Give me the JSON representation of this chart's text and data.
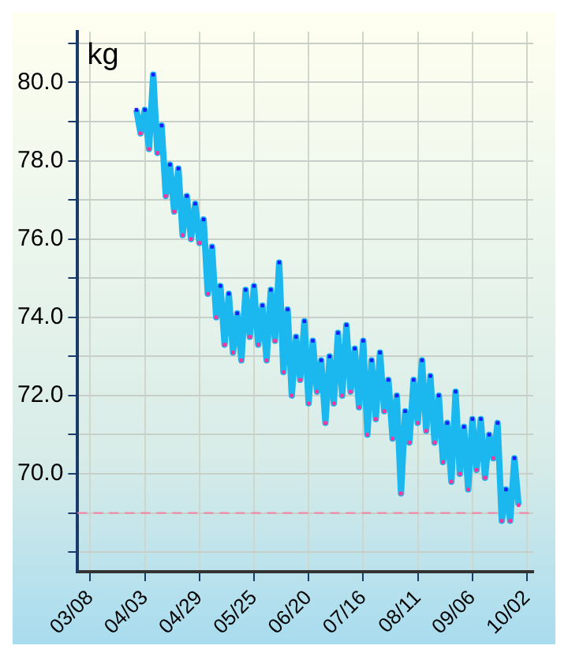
{
  "chart_data": {
    "type": "line",
    "ylabel": "kg",
    "x": [
      "--03-30",
      "--04-01",
      "--04-03",
      "--04-05",
      "--04-07",
      "--04-09",
      "--04-11",
      "--04-13",
      "--04-15",
      "--04-17",
      "--04-19",
      "--04-21",
      "--04-23",
      "--04-25",
      "--04-27",
      "--04-29",
      "--05-01",
      "--05-03",
      "--05-05",
      "--05-07",
      "--05-09",
      "--05-11",
      "--05-13",
      "--05-15",
      "--05-17",
      "--05-19",
      "--05-21",
      "--05-23",
      "--05-25",
      "--05-27",
      "--05-29",
      "--05-31",
      "--06-02",
      "--06-04",
      "--06-06",
      "--06-08",
      "--06-10",
      "--06-12",
      "--06-14",
      "--06-16",
      "--06-18",
      "--06-20",
      "--06-22",
      "--06-24",
      "--06-26",
      "--06-28",
      "--06-30",
      "--07-02",
      "--07-04",
      "--07-06",
      "--07-08",
      "--07-10",
      "--07-12",
      "--07-14",
      "--07-16",
      "--07-18",
      "--07-20",
      "--07-22",
      "--07-24",
      "--07-26",
      "--07-28",
      "--07-30",
      "--08-01",
      "--08-03",
      "--08-05",
      "--08-07",
      "--08-09",
      "--08-11",
      "--08-13",
      "--08-15",
      "--08-17",
      "--08-19",
      "--08-21",
      "--08-23",
      "--08-25",
      "--08-27",
      "--08-29",
      "--08-31",
      "--09-02",
      "--09-04",
      "--09-06",
      "--09-08",
      "--09-10",
      "--09-12",
      "--09-14",
      "--09-16",
      "--09-18",
      "--09-20",
      "--09-22",
      "--09-24",
      "--09-26",
      "--09-28"
    ],
    "series": [
      {
        "color": "#1ab8ee",
        "values": [
          79.3,
          78.7,
          79.3,
          78.3,
          80.2,
          78.2,
          78.9,
          77.1,
          77.9,
          76.7,
          77.8,
          76.1,
          77.1,
          76.0,
          76.9,
          75.9,
          76.5,
          74.6,
          75.8,
          74.0,
          74.8,
          73.3,
          74.6,
          73.1,
          74.1,
          72.9,
          74.7,
          73.5,
          74.8,
          73.3,
          74.3,
          72.9,
          74.7,
          73.4,
          75.4,
          72.6,
          74.2,
          72.0,
          73.5,
          72.4,
          73.9,
          71.8,
          73.4,
          72.1,
          72.9,
          71.3,
          73.0,
          71.8,
          73.6,
          72.0,
          73.8,
          72.1,
          73.2,
          71.7,
          73.4,
          71.0,
          72.9,
          71.4,
          73.1,
          71.6,
          72.4,
          70.9,
          72.0,
          69.5,
          71.6,
          70.8,
          72.4,
          71.3,
          72.9,
          71.1,
          72.5,
          70.8,
          72.0,
          70.3,
          71.3,
          69.8,
          72.1,
          70.0,
          71.2,
          69.6,
          71.4,
          70.1,
          71.4,
          69.9,
          71.0,
          70.4,
          71.3,
          68.8,
          69.6,
          68.8,
          70.4,
          69.2
        ],
        "colors": [
          "#1a1aff",
          "#ff3399",
          "#1a1aff",
          "#ff3399",
          "#1a1aff",
          "#ff3399",
          "#1a1aff",
          "#ff3399",
          "#1a1aff",
          "#ff3399",
          "#1a1aff",
          "#ff3399",
          "#1a1aff",
          "#ff3399",
          "#1a1aff",
          "#ff3399",
          "#1a1aff",
          "#ff3399",
          "#1a1aff",
          "#ff3399",
          "#1a1aff",
          "#ff3399",
          "#1a1aff",
          "#ff3399",
          "#1a1aff",
          "#ff3399",
          "#1a1aff",
          "#ff3399",
          "#1a1aff",
          "#ff3399",
          "#1a1aff",
          "#ff3399",
          "#1a1aff",
          "#ff3399",
          "#1a1aff",
          "#ff3399",
          "#1a1aff",
          "#ff3399",
          "#1a1aff",
          "#ff3399",
          "#1a1aff",
          "#ff3399",
          "#1a1aff",
          "#ff3399",
          "#1a1aff",
          "#ff3399",
          "#1a1aff",
          "#ff3399",
          "#1a1aff",
          "#ff3399",
          "#1a1aff",
          "#ff3399",
          "#1a1aff",
          "#ff3399",
          "#1a1aff",
          "#ff3399",
          "#1a1aff",
          "#ff3399",
          "#1a1aff",
          "#ff3399",
          "#1a1aff",
          "#ff3399",
          "#1a1aff",
          "#ff3399",
          "#1a1aff",
          "#ff3399",
          "#1a1aff",
          "#ff3399",
          "#1a1aff",
          "#ff3399",
          "#1a1aff",
          "#ff3399",
          "#1a1aff",
          "#ff3399",
          "#1a1aff",
          "#ff3399",
          "#1a1aff",
          "#ff3399",
          "#1a1aff",
          "#ff3399",
          "#1a1aff",
          "#ff3399",
          "#1a1aff",
          "#ff3399",
          "#1a1aff",
          "#ff3399",
          "#1a1aff",
          "#ff3399",
          "#1a1aff",
          "#ff3399",
          "#1a1aff",
          "#ff3399"
        ]
      }
    ],
    "xlim": [
      "--03-02",
      "--10-05"
    ],
    "xticks": [
      {
        "value": "--03-08",
        "label": "03/08"
      },
      {
        "value": "--04-03",
        "label": "04/03"
      },
      {
        "value": "--04-29",
        "label": "04/29"
      },
      {
        "value": "--05-25",
        "label": "05/25"
      },
      {
        "value": "--06-20",
        "label": "06/20"
      },
      {
        "value": "--07-16",
        "label": "07/16"
      },
      {
        "value": "--08-11",
        "label": "08/11"
      },
      {
        "value": "--09-06",
        "label": "09/06"
      },
      {
        "value": "--10-02",
        "label": "10/02"
      }
    ],
    "ylim": [
      67.5,
      81.3
    ],
    "yticks": [
      {
        "value": 68,
        "label": null
      },
      {
        "value": 69,
        "label": null
      },
      {
        "value": 70,
        "label": "70.0"
      },
      {
        "value": 71,
        "label": null
      },
      {
        "value": 72,
        "label": "72.0"
      },
      {
        "value": 73,
        "label": null
      },
      {
        "value": 74,
        "label": "74.0"
      },
      {
        "value": 75,
        "label": null
      },
      {
        "value": 76,
        "label": "76.0"
      },
      {
        "value": 77,
        "label": null
      },
      {
        "value": 78,
        "label": "78.0"
      },
      {
        "value": 79,
        "label": null
      },
      {
        "value": 80,
        "label": "80.0"
      },
      {
        "value": 81,
        "label": null
      }
    ],
    "ref_lines": [
      {
        "axis": "y",
        "value": 69,
        "color": "#f08aa8",
        "line_style": "dashed"
      }
    ],
    "grid": true,
    "legend": false,
    "marker": "square",
    "line_style": "solid"
  }
}
